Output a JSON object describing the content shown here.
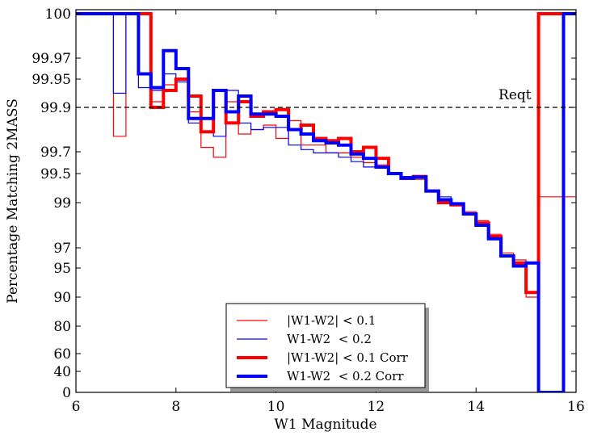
{
  "chart_data": {
    "type": "line",
    "xlabel": "W1 Magnitude",
    "ylabel": "Percentage Matching 2MASS",
    "xlim": [
      6,
      16
    ],
    "ylim": [
      0,
      100
    ],
    "x_ticks": [
      "6",
      "8",
      "10",
      "12",
      "14",
      "16"
    ],
    "x_tick_values": [
      6,
      8,
      10,
      12,
      14,
      16
    ],
    "y_tick_values": [
      0,
      40,
      60,
      80,
      90,
      95,
      97,
      99,
      99.5,
      99.7,
      99.9,
      99.95,
      99.97,
      100
    ],
    "y_tick_labels": [
      "0",
      "40",
      "60",
      "80",
      "90",
      "95",
      "97",
      "99",
      "99.5",
      "99.7",
      "99.9",
      "99.95",
      "99.97",
      "100"
    ],
    "y_scale": "logit-like (stretched near 100)",
    "bin_edges": [
      6.0,
      6.25,
      6.5,
      6.75,
      7.0,
      7.25,
      7.5,
      7.75,
      8.0,
      8.25,
      8.5,
      8.75,
      9.0,
      9.25,
      9.5,
      9.75,
      10.0,
      10.25,
      10.5,
      10.75,
      11.0,
      11.25,
      11.5,
      11.75,
      12.0,
      12.25,
      12.5,
      12.75,
      13.0,
      13.25,
      13.5,
      13.75,
      14.0,
      14.25,
      14.5,
      14.75,
      15.0,
      15.25,
      15.5,
      15.75,
      16.0
    ],
    "series": [
      {
        "name": "|W1-W2| < 0.1",
        "color": "#ff0000",
        "style": "thin",
        "values": [
          100,
          100,
          100,
          99.77,
          100,
          100,
          99.91,
          99.94,
          99.95,
          99.88,
          99.72,
          99.65,
          99.91,
          99.78,
          99.8,
          99.82,
          99.76,
          99.84,
          99.73,
          99.73,
          99.69,
          99.69,
          99.65,
          99.6,
          99.58,
          99.5,
          99.4,
          99.4,
          99.2,
          99.0,
          98.9,
          98.6,
          98.2,
          97.6,
          96.5,
          95.8,
          90.0,
          99.1,
          99.1,
          99.1
        ]
      },
      {
        "name": "W1-W2  < 0.2",
        "color": "#0000ff",
        "style": "thin",
        "values": [
          100,
          100,
          100,
          99.925,
          100,
          99.935,
          99.93,
          99.955,
          99.945,
          99.83,
          99.85,
          99.77,
          99.93,
          99.83,
          99.8,
          99.81,
          99.81,
          99.73,
          99.71,
          99.69,
          99.69,
          99.65,
          99.61,
          99.56,
          99.55,
          99.5,
          99.45,
          99.42,
          99.2,
          99.1,
          98.95,
          98.5,
          98.0,
          97.4,
          96.3,
          95.2,
          95.5,
          0,
          0,
          0
        ]
      },
      {
        "name": "|W1-W2| < 0.1 Corr",
        "color": "#ff0000",
        "style": "thick",
        "values": [
          100,
          100,
          100,
          100,
          100,
          100,
          99.9,
          99.93,
          99.95,
          99.92,
          99.79,
          99.93,
          99.83,
          99.91,
          99.86,
          99.88,
          99.89,
          99.8,
          99.82,
          99.76,
          99.75,
          99.76,
          99.7,
          99.72,
          99.64,
          99.5,
          99.42,
          99.45,
          99.2,
          99.0,
          98.9,
          98.5,
          98.1,
          97.5,
          96.2,
          95.5,
          90.8,
          100,
          100,
          100
        ]
      },
      {
        "name": "W1-W2  < 0.2 Corr",
        "color": "#0000ff",
        "style": "thick",
        "values": [
          100,
          100,
          100,
          100,
          100,
          99.955,
          99.935,
          99.975,
          99.96,
          99.85,
          99.85,
          99.93,
          99.88,
          99.92,
          99.87,
          99.87,
          99.86,
          99.8,
          99.78,
          99.75,
          99.74,
          99.73,
          99.68,
          99.64,
          99.56,
          99.5,
          99.42,
          99.44,
          99.2,
          99.05,
          98.95,
          98.5,
          98.0,
          97.4,
          96.2,
          95.2,
          95.5,
          0,
          0,
          100
        ]
      }
    ],
    "reference_line": {
      "y": 99.9,
      "style": "dashed",
      "label": "Reqt"
    },
    "legend_placement": "bottom-center",
    "grid": false
  }
}
